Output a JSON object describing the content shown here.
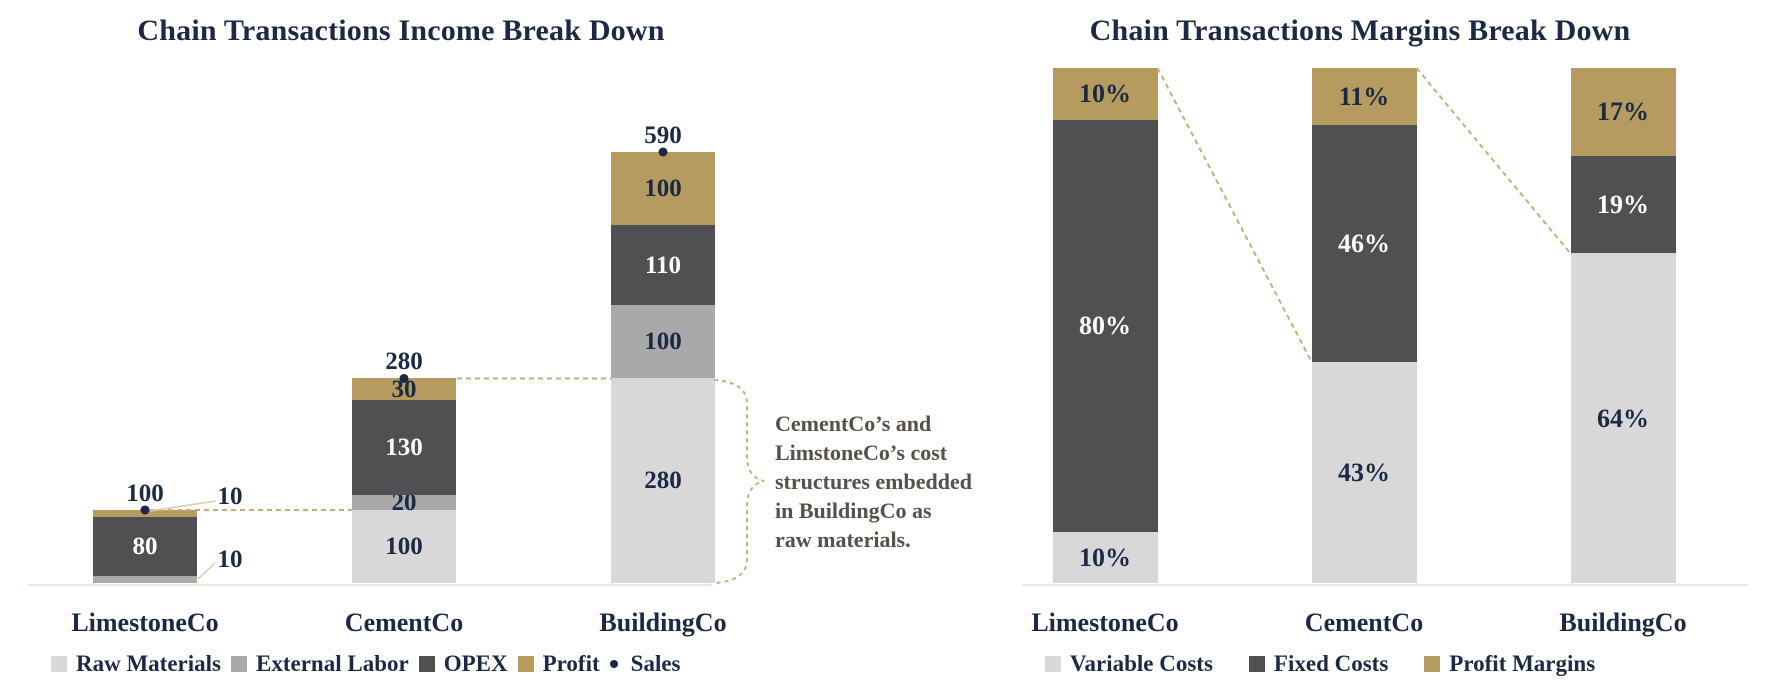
{
  "palette": {
    "navy": "#1b2945",
    "dark_gray": "#505052",
    "medium_gray": "#a9a9a9",
    "light_gray": "#d8d8d8",
    "gold": "#b69b61",
    "connector_tan": "#c8ad7a",
    "leader_tan": "#d8cab0",
    "axis_line": "#ebe5dc",
    "annotation_text": "#56504a",
    "label_on_dark": "#ffffff"
  },
  "chart_data": [
    {
      "id": "income",
      "type": "bar",
      "stacked": true,
      "title": "Chain Transactions Income Break Down",
      "categories": [
        "LimestoneCo",
        "CementCo",
        "BuildingCo"
      ],
      "series": [
        {
          "name": "Raw Materials",
          "color": "light_gray",
          "values": [
            0,
            100,
            280
          ]
        },
        {
          "name": "External Labor",
          "color": "medium_gray",
          "values": [
            10,
            20,
            100
          ]
        },
        {
          "name": "OPEX",
          "color": "dark_gray",
          "values": [
            80,
            130,
            110
          ]
        },
        {
          "name": "Profit",
          "color": "gold",
          "values": [
            10,
            30,
            100
          ]
        }
      ],
      "sales_series": {
        "name": "Sales",
        "marker": "dot",
        "values": [
          100,
          280,
          590
        ]
      },
      "totals": [
        100,
        280,
        590
      ],
      "callouts": [
        {
          "text": "10",
          "refers_to": "LimestoneCo Profit"
        },
        {
          "text": "10",
          "refers_to": "LimestoneCo External Labor"
        }
      ],
      "connector_lines": "dashed lines link each company's total to the next bar",
      "legend": [
        {
          "label": "Raw Materials",
          "marker": "swatch",
          "color": "light_gray"
        },
        {
          "label": "External Labor",
          "marker": "swatch",
          "color": "medium_gray"
        },
        {
          "label": "OPEX",
          "marker": "swatch",
          "color": "dark_gray"
        },
        {
          "label": "Profit",
          "marker": "swatch",
          "color": "gold"
        },
        {
          "label": "Sales",
          "marker": "dot",
          "color": "navy"
        }
      ],
      "annotation": "CementCo’s and\nLimstoneCo’s cost\nstructures embedded\nin BuildingCo as\nraw materials.",
      "value_axis": "hidden",
      "grid": false,
      "legend_position": "bottom"
    },
    {
      "id": "margins",
      "type": "bar",
      "stacked": true,
      "unit": "%",
      "title": "Chain Transactions Margins Break Down",
      "categories": [
        "LimestoneCo",
        "CementCo",
        "BuildingCo"
      ],
      "series": [
        {
          "name": "Variable Costs",
          "color": "light_gray",
          "values": [
            10,
            43,
            64
          ]
        },
        {
          "name": "Fixed Costs",
          "color": "dark_gray",
          "values": [
            80,
            46,
            19
          ]
        },
        {
          "name": "Profit Margins",
          "color": "gold",
          "values": [
            10,
            11,
            17
          ]
        }
      ],
      "totals": [
        100,
        100,
        100
      ],
      "connector_lines": "dashed diagonals link each bar top to the next bar's variable-costs boundary",
      "legend": [
        {
          "label": "Variable Costs",
          "marker": "swatch",
          "color": "light_gray"
        },
        {
          "label": "Fixed Costs",
          "marker": "swatch",
          "color": "dark_gray"
        },
        {
          "label": "Profit Margins",
          "marker": "swatch",
          "color": "gold"
        }
      ],
      "value_axis": "hidden",
      "grid": false,
      "legend_position": "bottom"
    }
  ]
}
